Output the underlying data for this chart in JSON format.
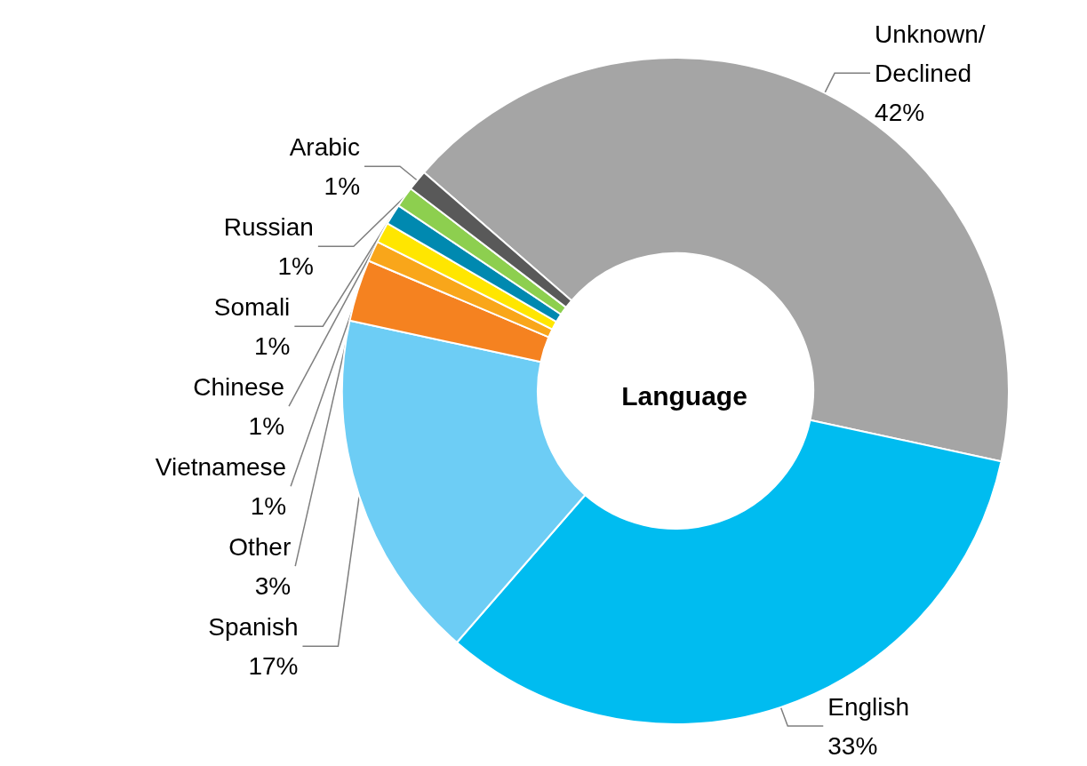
{
  "chart_data": {
    "type": "donut",
    "title": "Language",
    "categories": [
      "Unknown/ Declined",
      "English",
      "Spanish",
      "Other",
      "Vietnamese",
      "Chinese",
      "Somali",
      "Russian",
      "Arabic"
    ],
    "values": [
      42,
      33,
      17,
      3,
      1,
      1,
      1,
      1,
      1
    ],
    "value_labels": [
      "42%",
      "33%",
      "17%",
      "3%",
      "1%",
      "1%",
      "1%",
      "1%",
      "1%"
    ],
    "colors": [
      "#a5a5a5",
      "#00bcf0",
      "#6dcdf5",
      "#f58220",
      "#f9a61a",
      "#ffe600",
      "#0089b0",
      "#8dcf4f",
      "#595959"
    ],
    "legend": false
  }
}
